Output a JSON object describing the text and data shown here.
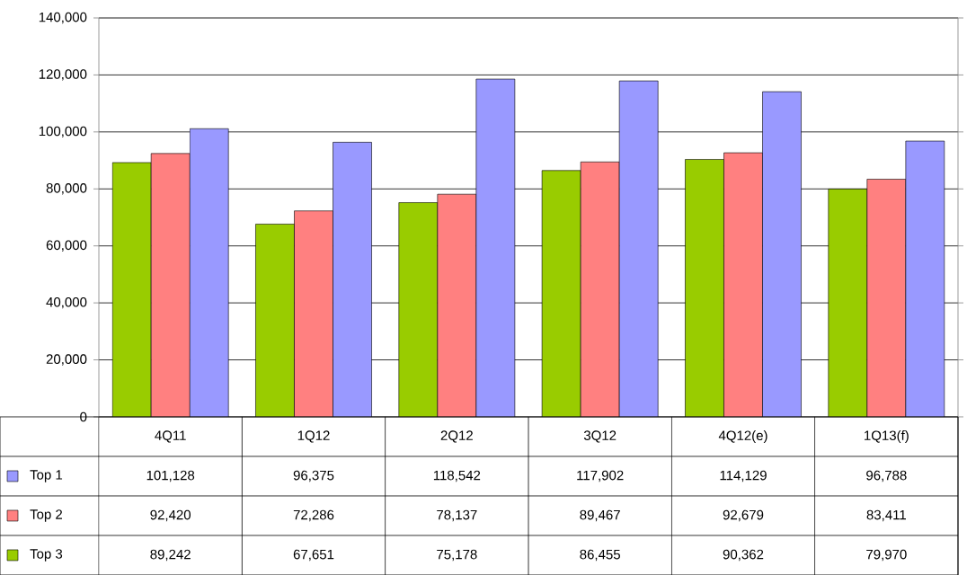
{
  "chart_data": {
    "type": "bar",
    "categories": [
      "4Q11",
      "1Q12",
      "2Q12",
      "3Q12",
      "4Q12(e)",
      "1Q13(f)"
    ],
    "series": [
      {
        "name": "Top 1",
        "color": "#9999ff",
        "values": [
          101128,
          96375,
          118542,
          117902,
          114129,
          96788
        ],
        "value_labels": [
          "101,128",
          "96,375",
          "118,542",
          "117,902",
          "114,129",
          "96,788"
        ]
      },
      {
        "name": "Top 2",
        "color": "#ff8080",
        "values": [
          92420,
          72286,
          78137,
          89467,
          92679,
          83411
        ],
        "value_labels": [
          "92,420",
          "72,286",
          "78,137",
          "89,467",
          "92,679",
          "83,411"
        ]
      },
      {
        "name": "Top 3",
        "color": "#99cc00",
        "values": [
          89242,
          67651,
          75178,
          86455,
          90362,
          79970
        ],
        "value_labels": [
          "89,242",
          "67,651",
          "75,178",
          "86,455",
          "90,362",
          "79,970"
        ]
      }
    ],
    "ylim": [
      0,
      140000
    ],
    "yticks": [
      0,
      {
        "value": 20000,
        "label": "20,000"
      },
      {
        "value": 40000,
        "label": "40,000"
      },
      {
        "value": 60000,
        "label": "60,000"
      },
      {
        "value": 80000,
        "label": "80,000"
      },
      {
        "value": 100000,
        "label": "100,000"
      },
      {
        "value": 120000,
        "label": "120,000"
      },
      {
        "value": 140000,
        "label": "140,000"
      }
    ],
    "grid": "y",
    "legend": "bottom left"
  }
}
